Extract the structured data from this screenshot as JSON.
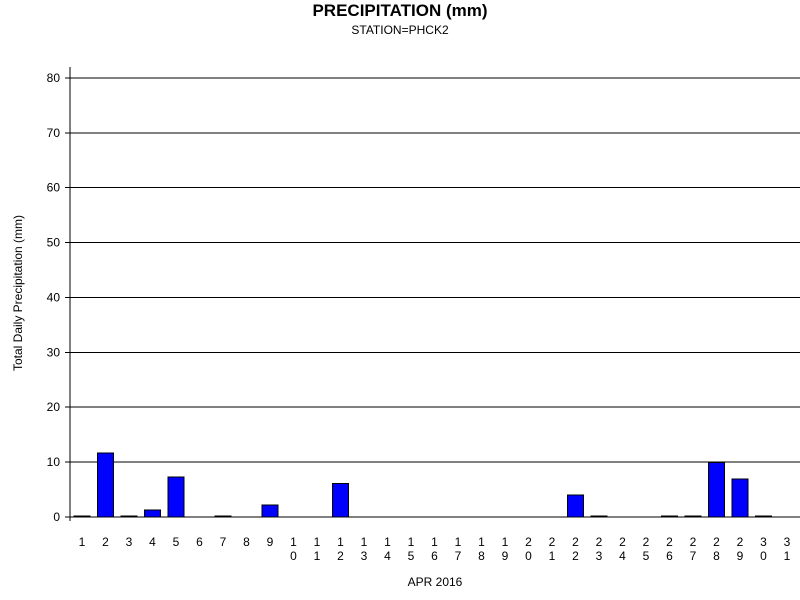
{
  "chart_data": {
    "type": "bar",
    "title": "PRECIPITATION (mm)",
    "subtitle": "STATION=PHCK2",
    "xlabel": "APR 2016",
    "ylabel": "Total Daily Precipitation (mm)",
    "ylim": [
      0,
      82
    ],
    "yticks": [
      0,
      10,
      20,
      30,
      40,
      50,
      60,
      70,
      80
    ],
    "grid": true,
    "categories": [
      "1",
      "2",
      "3",
      "4",
      "5",
      "6",
      "7",
      "8",
      "9",
      "10",
      "11",
      "12",
      "13",
      "14",
      "15",
      "16",
      "17",
      "18",
      "19",
      "20",
      "21",
      "22",
      "23",
      "24",
      "25",
      "26",
      "27",
      "28",
      "29",
      "30",
      "31"
    ],
    "values": [
      0.2,
      11.7,
      0.2,
      1.3,
      7.3,
      null,
      0.2,
      null,
      2.2,
      null,
      null,
      6.1,
      null,
      null,
      null,
      null,
      null,
      null,
      null,
      null,
      null,
      4.0,
      0.2,
      null,
      null,
      0.2,
      0.2,
      9.9,
      6.9,
      0.2,
      null
    ],
    "bar_color": "#0000ff"
  }
}
